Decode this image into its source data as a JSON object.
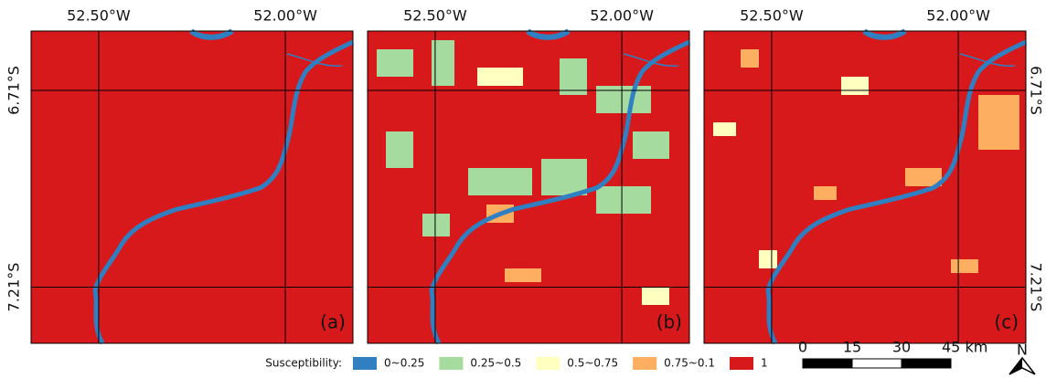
{
  "longitude_labels": [
    "52.50°W",
    "52.00°W"
  ],
  "latitude_labels": [
    "6.71°S",
    "7.21°S"
  ],
  "panels": [
    {
      "label": "(a)"
    },
    {
      "label": "(b)"
    },
    {
      "label": "(c)"
    }
  ],
  "legend": {
    "title": "Susceptibility:",
    "items": [
      {
        "label": "0~0.25",
        "color": "#2f7fc1"
      },
      {
        "label": "0.25~0.5",
        "color": "#a6dba0"
      },
      {
        "label": "0.5~0.75",
        "color": "#ffffbf"
      },
      {
        "label": "0.75~0.1",
        "color": "#fdae61"
      },
      {
        "label": "1",
        "color": "#d7191c"
      }
    ]
  },
  "scale_bar": {
    "ticks": [
      "0",
      "15",
      "30",
      "45 km"
    ]
  },
  "north": "N"
}
